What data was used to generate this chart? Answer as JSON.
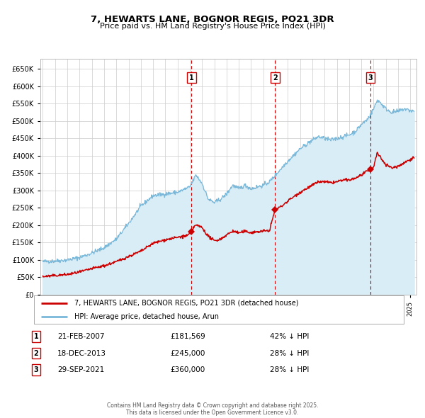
{
  "title": "7, HEWARTS LANE, BOGNOR REGIS, PO21 3DR",
  "subtitle": "Price paid vs. HM Land Registry's House Price Index (HPI)",
  "legend_line1": "7, HEWARTS LANE, BOGNOR REGIS, PO21 3DR (detached house)",
  "legend_line2": "HPI: Average price, detached house, Arun",
  "footer": "Contains HM Land Registry data © Crown copyright and database right 2025.\nThis data is licensed under the Open Government Licence v3.0.",
  "hpi_color": "#7ab8d9",
  "hpi_fill": "#d9edf7",
  "price_color": "#cc0000",
  "sale_color": "#cc0000",
  "vline_color": "#cc0000",
  "sale_points": [
    {
      "date_num": 2007.14,
      "price": 181569,
      "label": "1"
    },
    {
      "date_num": 2013.96,
      "price": 245000,
      "label": "2"
    },
    {
      "date_num": 2021.74,
      "price": 360000,
      "label": "3"
    }
  ],
  "sale_info": [
    {
      "num": "1",
      "date": "21-FEB-2007",
      "price": "£181,569",
      "note": "42% ↓ HPI"
    },
    {
      "num": "2",
      "date": "18-DEC-2013",
      "price": "£245,000",
      "note": "28% ↓ HPI"
    },
    {
      "num": "3",
      "date": "29-SEP-2021",
      "price": "£360,000",
      "note": "28% ↓ HPI"
    }
  ],
  "ylim": [
    0,
    680000
  ],
  "yticks": [
    0,
    50000,
    100000,
    150000,
    200000,
    250000,
    300000,
    350000,
    400000,
    450000,
    500000,
    550000,
    600000,
    650000
  ],
  "xlim_start": 1994.8,
  "xlim_end": 2025.5,
  "background_color": "#ffffff",
  "grid_color": "#cccccc",
  "box_color": "#cc0000",
  "hpi_anchors": [
    [
      1995.0,
      95000
    ],
    [
      1996.0,
      97000
    ],
    [
      1997.0,
      100000
    ],
    [
      1998.0,
      107000
    ],
    [
      1999.0,
      120000
    ],
    [
      2000.0,
      135000
    ],
    [
      2001.0,
      160000
    ],
    [
      2002.0,
      205000
    ],
    [
      2003.0,
      255000
    ],
    [
      2004.0,
      285000
    ],
    [
      2005.0,
      290000
    ],
    [
      2006.0,
      295000
    ],
    [
      2007.0,
      310000
    ],
    [
      2007.5,
      345000
    ],
    [
      2008.0,
      320000
    ],
    [
      2008.5,
      275000
    ],
    [
      2009.0,
      265000
    ],
    [
      2009.5,
      275000
    ],
    [
      2010.0,
      290000
    ],
    [
      2010.5,
      315000
    ],
    [
      2011.0,
      305000
    ],
    [
      2011.5,
      315000
    ],
    [
      2012.0,
      305000
    ],
    [
      2012.5,
      310000
    ],
    [
      2013.0,
      315000
    ],
    [
      2013.5,
      325000
    ],
    [
      2014.0,
      345000
    ],
    [
      2015.0,
      385000
    ],
    [
      2016.0,
      420000
    ],
    [
      2017.0,
      445000
    ],
    [
      2017.5,
      455000
    ],
    [
      2018.0,
      450000
    ],
    [
      2018.5,
      445000
    ],
    [
      2019.0,
      450000
    ],
    [
      2019.5,
      455000
    ],
    [
      2020.0,
      460000
    ],
    [
      2020.5,
      470000
    ],
    [
      2021.0,
      490000
    ],
    [
      2021.5,
      505000
    ],
    [
      2022.0,
      535000
    ],
    [
      2022.3,
      560000
    ],
    [
      2022.5,
      555000
    ],
    [
      2023.0,
      535000
    ],
    [
      2023.5,
      525000
    ],
    [
      2024.0,
      528000
    ],
    [
      2024.5,
      535000
    ],
    [
      2025.0,
      530000
    ],
    [
      2025.3,
      528000
    ]
  ],
  "price_anchors": [
    [
      1995.0,
      52000
    ],
    [
      1996.0,
      55000
    ],
    [
      1997.0,
      58000
    ],
    [
      1998.0,
      65000
    ],
    [
      1999.0,
      75000
    ],
    [
      2000.0,
      83000
    ],
    [
      2001.0,
      95000
    ],
    [
      2002.0,
      110000
    ],
    [
      2003.0,
      125000
    ],
    [
      2004.0,
      148000
    ],
    [
      2005.0,
      158000
    ],
    [
      2006.0,
      165000
    ],
    [
      2006.8,
      170000
    ],
    [
      2007.14,
      181569
    ],
    [
      2007.4,
      200000
    ],
    [
      2007.8,
      197000
    ],
    [
      2008.0,
      193000
    ],
    [
      2008.5,
      168000
    ],
    [
      2009.0,
      155000
    ],
    [
      2009.5,
      160000
    ],
    [
      2010.0,
      172000
    ],
    [
      2010.5,
      183000
    ],
    [
      2011.0,
      178000
    ],
    [
      2011.5,
      182000
    ],
    [
      2012.0,
      179000
    ],
    [
      2012.5,
      181000
    ],
    [
      2013.0,
      183000
    ],
    [
      2013.5,
      185000
    ],
    [
      2013.96,
      245000
    ],
    [
      2014.0,
      245000
    ],
    [
      2014.5,
      255000
    ],
    [
      2015.0,
      270000
    ],
    [
      2016.0,
      295000
    ],
    [
      2017.0,
      315000
    ],
    [
      2017.5,
      325000
    ],
    [
      2018.0,
      325000
    ],
    [
      2018.5,
      322000
    ],
    [
      2019.0,
      325000
    ],
    [
      2019.5,
      330000
    ],
    [
      2020.0,
      330000
    ],
    [
      2020.5,
      335000
    ],
    [
      2021.0,
      345000
    ],
    [
      2021.74,
      360000
    ],
    [
      2021.9,
      362000
    ],
    [
      2022.0,
      370000
    ],
    [
      2022.3,
      408000
    ],
    [
      2022.6,
      393000
    ],
    [
      2023.0,
      375000
    ],
    [
      2023.5,
      365000
    ],
    [
      2024.0,
      370000
    ],
    [
      2024.5,
      380000
    ],
    [
      2025.0,
      390000
    ],
    [
      2025.3,
      395000
    ]
  ]
}
